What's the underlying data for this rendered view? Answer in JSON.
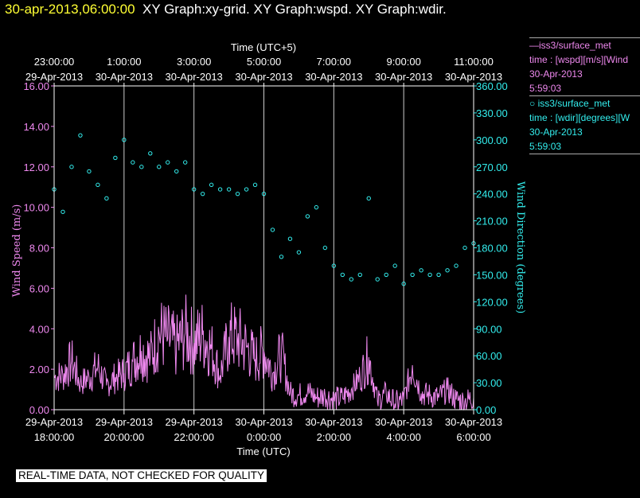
{
  "header": {
    "date_stamp": "30-apr-2013,06:00:00",
    "graphs": "XY Graph:xy-grid.  XY Graph:wspd.  XY Graph:wdir."
  },
  "legend": {
    "speed": {
      "line1": "—iss3/surface_met",
      "line2": "time : [wspd][m/s][Wind",
      "line3": "30-Apr-2013",
      "line4": "5:59:03"
    },
    "direction": {
      "line1": "iss3/surface_met",
      "line2": "time : [wdir][degrees][W",
      "line3": "30-Apr-2013",
      "line4": "5:59:03"
    }
  },
  "notice": "REAL-TIME DATA, NOT CHECKED FOR QUALITY",
  "colors": {
    "speed": "#ee88ee",
    "direction": "#33eeee",
    "grid": "#cccccc",
    "frame": "#ffffff"
  },
  "chart_data": {
    "type": "line",
    "top_axis_title": "Time (UTC+5)",
    "bottom_axis_title": "Time (UTC)",
    "ylabel_left": "Wind Speed (m/s)",
    "ylabel_right": "Wind Direction (degrees)",
    "x_range_hours_utc": [
      18,
      30
    ],
    "ylim_left": [
      0,
      16
    ],
    "ylim_right": [
      0,
      360
    ],
    "yticks_left": [
      "0.00",
      "2.00",
      "4.00",
      "6.00",
      "8.00",
      "10.00",
      "12.00",
      "14.00",
      "16.00"
    ],
    "yticks_right": [
      "0.00",
      "30.00",
      "60.00",
      "90.00",
      "120.00",
      "150.00",
      "180.00",
      "210.00",
      "240.00",
      "270.00",
      "300.00",
      "330.00",
      "360.00"
    ],
    "top_ticks": [
      {
        "time": "23:00:00",
        "date": "29-Apr-2013",
        "hour": 18
      },
      {
        "time": "1:00:00",
        "date": "30-Apr-2013",
        "hour": 20
      },
      {
        "time": "3:00:00",
        "date": "30-Apr-2013",
        "hour": 22
      },
      {
        "time": "5:00:00",
        "date": "30-Apr-2013",
        "hour": 24
      },
      {
        "time": "7:00:00",
        "date": "30-Apr-2013",
        "hour": 26
      },
      {
        "time": "9:00:00",
        "date": "30-Apr-2013",
        "hour": 28
      },
      {
        "time": "11:00:00",
        "date": "30-Apr-2013",
        "hour": 30
      }
    ],
    "bottom_ticks": [
      {
        "time": "18:00:00",
        "date": "29-Apr-2013",
        "hour": 18
      },
      {
        "time": "20:00:00",
        "date": "29-Apr-2013",
        "hour": 20
      },
      {
        "time": "22:00:00",
        "date": "29-Apr-2013",
        "hour": 22
      },
      {
        "time": "0:00:00",
        "date": "30-Apr-2013",
        "hour": 24
      },
      {
        "time": "2:00:00",
        "date": "30-Apr-2013",
        "hour": 26
      },
      {
        "time": "4:00:00",
        "date": "30-Apr-2013",
        "hour": 28
      },
      {
        "time": "6:00:00",
        "date": "30-Apr-2013",
        "hour": 30
      }
    ],
    "series": [
      {
        "name": "wspd",
        "unit": "m/s",
        "axis": "left",
        "hours": [
          18.0,
          18.25,
          18.5,
          18.75,
          19.0,
          19.25,
          19.5,
          19.75,
          20.0,
          20.25,
          20.5,
          20.75,
          21.0,
          21.25,
          21.5,
          21.75,
          22.0,
          22.25,
          22.5,
          22.75,
          23.0,
          23.25,
          23.5,
          23.75,
          24.0,
          24.25,
          24.5,
          24.75,
          25.0,
          25.25,
          25.5,
          25.75,
          26.0,
          26.25,
          26.5,
          26.75,
          27.0,
          27.25,
          27.5,
          27.75,
          28.0,
          28.25,
          28.5,
          28.75,
          29.0,
          29.25,
          29.5,
          29.75,
          30.0
        ],
        "values": [
          1.6,
          1.7,
          2.4,
          1.3,
          1.6,
          2.1,
          1.2,
          1.6,
          1.8,
          2.4,
          2.9,
          2.6,
          3.8,
          3.5,
          3.1,
          3.8,
          3.3,
          3.7,
          3.0,
          1.7,
          3.6,
          3.5,
          3.1,
          2.5,
          2.9,
          1.8,
          2.8,
          0.8,
          0.7,
          0.9,
          0.6,
          0.7,
          0.5,
          0.6,
          1.0,
          1.6,
          2.6,
          0.4,
          0.8,
          0.3,
          0.5,
          2.2,
          0.8,
          0.7,
          0.6,
          1.0,
          0.5,
          0.4,
          0.6
        ]
      },
      {
        "name": "wdir",
        "unit": "degrees",
        "axis": "right",
        "hours": [
          18.0,
          18.25,
          18.5,
          18.75,
          19.0,
          19.25,
          19.5,
          19.75,
          20.0,
          20.25,
          20.5,
          20.75,
          21.0,
          21.25,
          21.5,
          21.75,
          22.0,
          22.25,
          22.5,
          22.75,
          23.0,
          23.25,
          23.5,
          23.75,
          24.0,
          24.25,
          24.5,
          24.75,
          25.0,
          25.25,
          25.5,
          25.75,
          26.0,
          26.25,
          26.5,
          26.75,
          27.0,
          27.25,
          27.5,
          27.75,
          28.0,
          28.25,
          28.5,
          28.75,
          29.0,
          29.25,
          29.5,
          29.75,
          30.0
        ],
        "values": [
          245,
          220,
          270,
          305,
          265,
          250,
          235,
          280,
          300,
          275,
          270,
          285,
          270,
          275,
          265,
          275,
          245,
          240,
          250,
          245,
          245,
          240,
          245,
          250,
          240,
          200,
          170,
          190,
          175,
          215,
          225,
          180,
          160,
          150,
          145,
          150,
          235,
          145,
          150,
          160,
          140,
          150,
          155,
          150,
          150,
          155,
          160,
          180,
          185
        ]
      }
    ]
  }
}
